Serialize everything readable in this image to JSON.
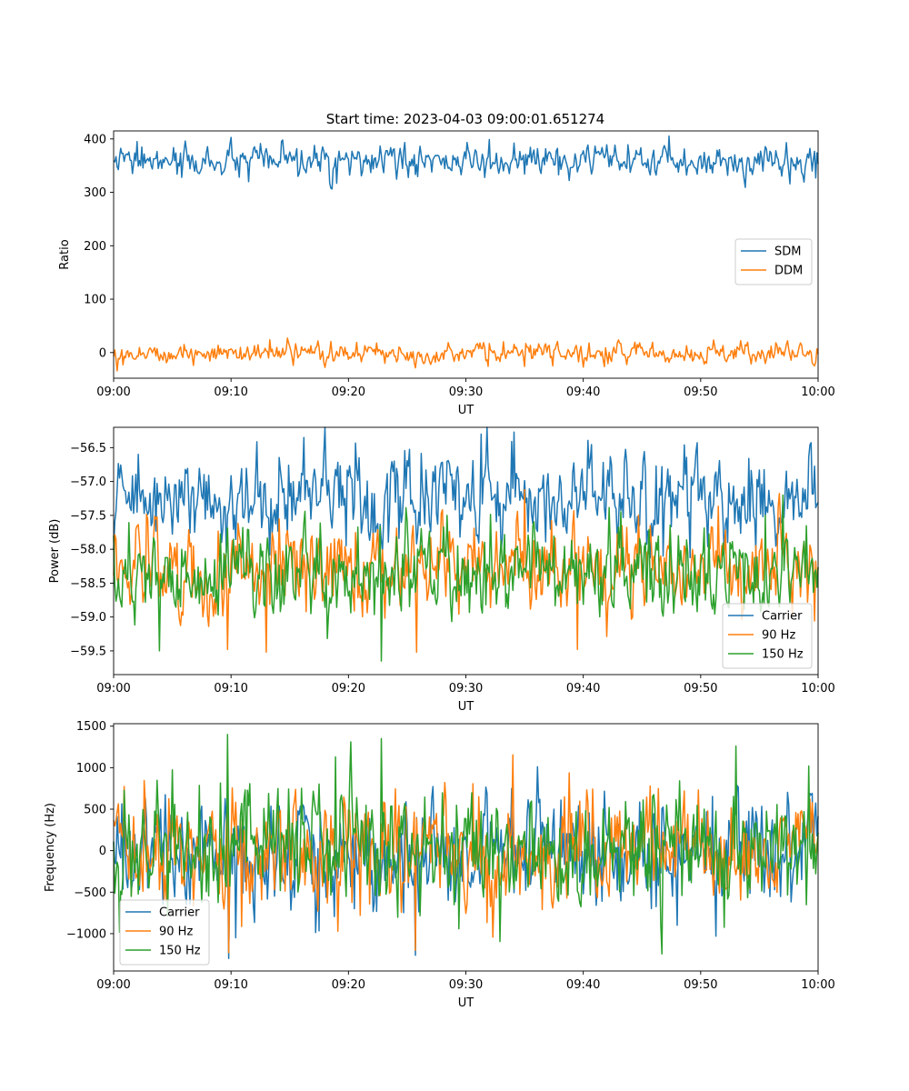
{
  "figure_title": "Start time: 2023-04-03 09:00:01.651274",
  "colors": {
    "blue": "#1f77b4",
    "orange": "#ff7f0e",
    "green": "#2ca02c"
  },
  "chart_data": [
    {
      "type": "line",
      "title": "Start time: 2023-04-03 09:00:01.651274",
      "xlabel": "UT",
      "ylabel": "Ratio",
      "xlim": [
        "09:00",
        "10:00"
      ],
      "xticks": [
        "09:00",
        "09:10",
        "09:20",
        "09:30",
        "09:40",
        "09:50",
        "10:00"
      ],
      "ylim": [
        -48,
        415
      ],
      "yticks": [
        0,
        100,
        200,
        300,
        400
      ],
      "ytick_labels": [
        "0",
        "100",
        "200",
        "300",
        "400"
      ],
      "grid": false,
      "legend": "center-right",
      "series": [
        {
          "name": "SDM",
          "color": "#1f77b4",
          "mean": 357,
          "noise": 14,
          "spikes": [
            [
              2.0,
              395
            ],
            [
              5.8,
              328
            ],
            [
              11.5,
              320
            ],
            [
              19.0,
              317
            ],
            [
              57.3,
              393
            ],
            [
              57.6,
              316
            ],
            [
              59.8,
              327
            ]
          ]
        },
        {
          "name": "DDM",
          "color": "#ff7f0e",
          "mean": -1,
          "noise": 9,
          "spikes": [
            [
              0.8,
              -23
            ],
            [
              6.8,
              -24
            ],
            [
              13.3,
              24
            ],
            [
              15.3,
              -24
            ],
            [
              35.0,
              -26
            ],
            [
              50.5,
              -20
            ],
            [
              59.5,
              -19
            ]
          ]
        }
      ]
    },
    {
      "type": "line",
      "xlabel": "UT",
      "ylabel": "Power (dB)",
      "xlim": [
        "09:00",
        "10:00"
      ],
      "xticks": [
        "09:00",
        "09:10",
        "09:20",
        "09:30",
        "09:40",
        "09:50",
        "10:00"
      ],
      "ylim": [
        -59.85,
        -56.2
      ],
      "yticks": [
        -59.5,
        -59.0,
        -58.5,
        -58.0,
        -57.5,
        -57.0,
        -56.5
      ],
      "ytick_labels": [
        "−59.5",
        "−59.0",
        "−58.5",
        "−58.0",
        "−57.5",
        "−57.0",
        "−56.5"
      ],
      "grid": false,
      "legend": "lower-right",
      "series": [
        {
          "name": "Carrier",
          "color": "#1f77b4",
          "mean": -57.25,
          "noise": 0.33,
          "spikes": [
            [
              9.6,
              -58.05
            ],
            [
              16.2,
              -56.35
            ],
            [
              31.3,
              -56.3
            ],
            [
              34.1,
              -56.27
            ],
            [
              46.8,
              -58.1
            ]
          ]
        },
        {
          "name": "90 Hz",
          "color": "#ff7f0e",
          "mean": -58.25,
          "noise": 0.32,
          "spikes": [
            [
              9.7,
              -59.48
            ],
            [
              13.0,
              -59.52
            ],
            [
              25.8,
              -59.52
            ],
            [
              35.0,
              -57.12
            ],
            [
              39.5,
              -59.48
            ]
          ]
        },
        {
          "name": "150 Hz",
          "color": "#2ca02c",
          "mean": -58.35,
          "noise": 0.33,
          "spikes": [
            [
              3.9,
              -59.5
            ],
            [
              22.8,
              -59.65
            ],
            [
              28.4,
              -57.5
            ],
            [
              55.5,
              -57.5
            ],
            [
              57.0,
              -57.2
            ]
          ]
        }
      ]
    },
    {
      "type": "line",
      "xlabel": "UT",
      "ylabel": "Frequency (Hz)",
      "xlim": [
        "09:00",
        "10:00"
      ],
      "xticks": [
        "09:00",
        "09:10",
        "09:20",
        "09:30",
        "09:40",
        "09:50",
        "10:00"
      ],
      "ylim": [
        -1450,
        1530
      ],
      "yticks": [
        -1000,
        -500,
        0,
        500,
        1000,
        1500
      ],
      "ytick_labels": [
        "−1000",
        "−500",
        "0",
        "500",
        "1000",
        "1500"
      ],
      "grid": false,
      "legend": "lower-left",
      "series": [
        {
          "name": "Carrier",
          "color": "#1f77b4",
          "mean": -40,
          "noise": 330,
          "spikes": [
            [
              9.8,
              -1300
            ],
            [
              10.4,
              -1050
            ],
            [
              25.7,
              -1260
            ],
            [
              48.0,
              -900
            ],
            [
              51.3,
              -1030
            ]
          ]
        },
        {
          "name": "90 Hz",
          "color": "#ff7f0e",
          "mean": -10,
          "noise": 330,
          "spikes": [
            [
              9.8,
              -1230
            ],
            [
              25.7,
              -1200
            ]
          ]
        },
        {
          "name": "150 Hz",
          "color": "#2ca02c",
          "mean": 20,
          "noise": 330,
          "spikes": [
            [
              9.7,
              1400
            ],
            [
              18.9,
              1130
            ],
            [
              22.8,
              1350
            ],
            [
              53.0,
              1260
            ],
            [
              59.2,
              1020
            ]
          ]
        }
      ]
    }
  ]
}
